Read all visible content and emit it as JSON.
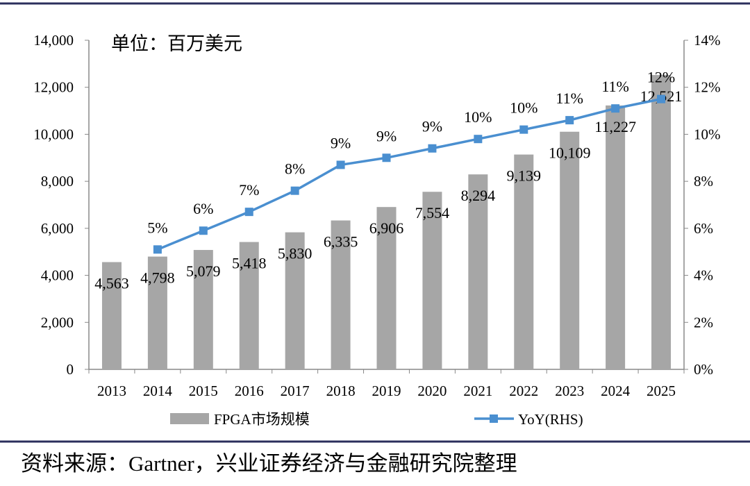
{
  "chart_data": {
    "type": "bar+line",
    "unit_note": "单位：百万美元",
    "categories": [
      "2013",
      "2014",
      "2015",
      "2016",
      "2017",
      "2018",
      "2019",
      "2020",
      "2021",
      "2022",
      "2023",
      "2024",
      "2025"
    ],
    "series": [
      {
        "name": "FPGA市场规模",
        "type": "bar",
        "axis": "left",
        "color": "#a6a6a6",
        "values": [
          4563,
          4798,
          5079,
          5418,
          5830,
          6335,
          6906,
          7554,
          8294,
          9139,
          10109,
          11227,
          12521
        ],
        "labels": [
          "4,563",
          "4,798",
          "5,079",
          "5,418",
          "5,830",
          "6,335",
          "6,906",
          "7,554",
          "8,294",
          "9,139",
          "10,109",
          "11,227",
          "12,521"
        ]
      },
      {
        "name": "YoY(RHS)",
        "type": "line",
        "axis": "right",
        "color": "#4a8fd0",
        "values": [
          null,
          5.1,
          5.9,
          6.7,
          7.6,
          8.7,
          9.0,
          9.4,
          9.8,
          10.2,
          10.6,
          11.1,
          11.5
        ],
        "labels": [
          "",
          "5%",
          "6%",
          "7%",
          "8%",
          "9%",
          "9%",
          "9%",
          "10%",
          "10%",
          "11%",
          "11%",
          "12%"
        ]
      }
    ],
    "left_axis": {
      "ylim": [
        0,
        14000
      ],
      "ticks": [
        "0",
        "2,000",
        "4,000",
        "6,000",
        "8,000",
        "10,000",
        "12,000",
        "14,000"
      ]
    },
    "right_axis": {
      "ylim": [
        0,
        14
      ],
      "ticks": [
        "0%",
        "2%",
        "4%",
        "6%",
        "8%",
        "10%",
        "12%",
        "14%"
      ]
    },
    "legend": {
      "placement": "bottom",
      "items": [
        "FPGA市场规模",
        "YoY(RHS)"
      ]
    },
    "grid": false
  },
  "source": "资料来源：Gartner，兴业证券经济与金融研究院整理",
  "frame_color": "#2b2f5c"
}
